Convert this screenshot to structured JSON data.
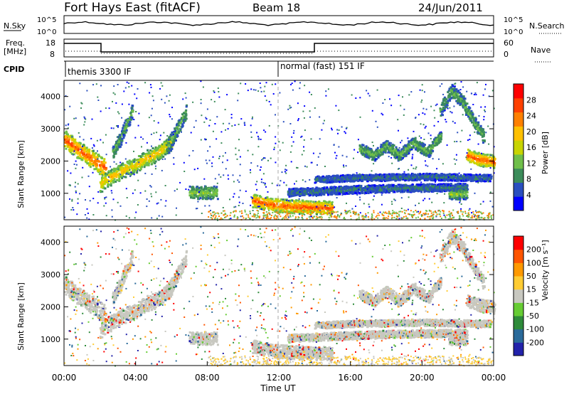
{
  "header": {
    "title": "Fort Hays East (fitACF)",
    "beam": "Beam 18",
    "date": "24/Jun/2011"
  },
  "noise_panel": {
    "left_label": "N.Sky",
    "right_label": "N.Search",
    "ticks": [
      "10^5",
      "10^0"
    ]
  },
  "freq_panel": {
    "left_label_1": "Freq.",
    "left_label_2": "[MHz]",
    "left_ticks": [
      "18",
      "8"
    ],
    "right_label": "Nave",
    "right_ticks": [
      "60",
      "0"
    ]
  },
  "cpid": {
    "label": "CPID",
    "segments": [
      "themis 3300 IF",
      "normal (fast) 151 IF"
    ]
  },
  "colors": {
    "power_scale": [
      "#0000ff",
      "#2a4fbf",
      "#3c8c5a",
      "#6fbf4a",
      "#c8d400",
      "#ffc000",
      "#ff8000",
      "#ff4000",
      "#ff0000"
    ],
    "velocity_scale": [
      "#2222aa",
      "#2a6a9a",
      "#2e8b3a",
      "#66cc33",
      "#c8c8c0",
      "#ffcc33",
      "#ff9900",
      "#ff5500",
      "#ff0000"
    ]
  },
  "chart_data": [
    {
      "type": "heatmap",
      "name": "power",
      "ylabel": "Slant Range [km]",
      "ylim": [
        180,
        4500
      ],
      "yticks": [
        "4000",
        "3000",
        "2000",
        "1000"
      ],
      "colorbar_label": "Power [dB]",
      "colorbar_ticks": [
        "28",
        "24",
        "20",
        "16",
        "12",
        "8",
        "4"
      ],
      "bands": [
        {
          "x": [
            0.0,
            0.5,
            1.0,
            1.5,
            2.0,
            2.3
          ],
          "y": [
            2700,
            2500,
            2300,
            2100,
            1900,
            1800
          ],
          "width": 350,
          "value": 26
        },
        {
          "x": [
            2.0,
            2.5,
            3.0,
            3.5,
            4.0,
            4.5,
            5.0,
            5.5,
            6.0
          ],
          "y": [
            1300,
            1500,
            1650,
            1800,
            1900,
            2100,
            2200,
            2400,
            2600
          ],
          "width": 300,
          "value": 20
        },
        {
          "x": [
            2.7,
            3.1,
            3.5,
            3.8
          ],
          "y": [
            2300,
            2700,
            3200,
            3600
          ],
          "width": 250,
          "value": 12
        },
        {
          "x": [
            5.7,
            6.1,
            6.5,
            6.8
          ],
          "y": [
            2400,
            2800,
            3200,
            3600
          ],
          "width": 300,
          "value": 12
        },
        {
          "x": [
            10.5,
            11.5,
            12.5,
            13.5,
            14.5,
            15.0
          ],
          "y": [
            800,
            680,
            620,
            600,
            580,
            560
          ],
          "width": 260,
          "value": 26
        },
        {
          "x": [
            12.5,
            14.5,
            16.5,
            18.5,
            20.5,
            22.5
          ],
          "y": [
            1050,
            1100,
            1150,
            1180,
            1200,
            1220
          ],
          "width": 150,
          "value": 8
        },
        {
          "x": [
            14.0,
            16.0,
            18.0,
            20.0,
            22.0,
            23.8
          ],
          "y": [
            1450,
            1500,
            1520,
            1540,
            1520,
            1500
          ],
          "width": 130,
          "value": 8
        },
        {
          "x": [
            16.5,
            17.3,
            18.0,
            18.7,
            19.5,
            20.3,
            21.0
          ],
          "y": [
            2400,
            2200,
            2500,
            2200,
            2600,
            2300,
            2800
          ],
          "width": 220,
          "value": 12
        },
        {
          "x": [
            21.0,
            21.6,
            22.2,
            22.8,
            23.4
          ],
          "y": [
            3600,
            4200,
            3900,
            3300,
            2800
          ],
          "width": 250,
          "value": 12
        },
        {
          "x": [
            22.5,
            23.0,
            23.5,
            24.0
          ],
          "y": [
            2200,
            2100,
            2050,
            2000
          ],
          "width": 250,
          "value": 26
        },
        {
          "x": [
            7.0,
            7.5,
            8.0,
            8.5
          ],
          "y": [
            1050,
            1050,
            1050,
            1050
          ],
          "width": 250,
          "value": 14
        },
        {
          "x": [
            21.5,
            22.0,
            22.5
          ],
          "y": [
            1000,
            1000,
            1000
          ],
          "width": 200,
          "value": 14
        }
      ],
      "scatter_density": 0.08
    },
    {
      "type": "heatmap",
      "name": "velocity",
      "ylabel": "Slant Range [km]",
      "ylim": [
        180,
        4500
      ],
      "yticks": [
        "4000",
        "3000",
        "2000",
        "1000"
      ],
      "xlabel": "Time UT",
      "xticks": [
        "00:00",
        "04:00",
        "08:00",
        "12:00",
        "16:00",
        "20:00",
        "00:00"
      ],
      "xlim_hours": [
        0,
        24
      ],
      "colorbar_label": "Velocity [m s⁻¹]",
      "colorbar_ticks": [
        "200",
        "100",
        "50",
        "15",
        "-15",
        "-50",
        "-100",
        "-200"
      ]
    }
  ],
  "cpid_change_hour": 12
}
